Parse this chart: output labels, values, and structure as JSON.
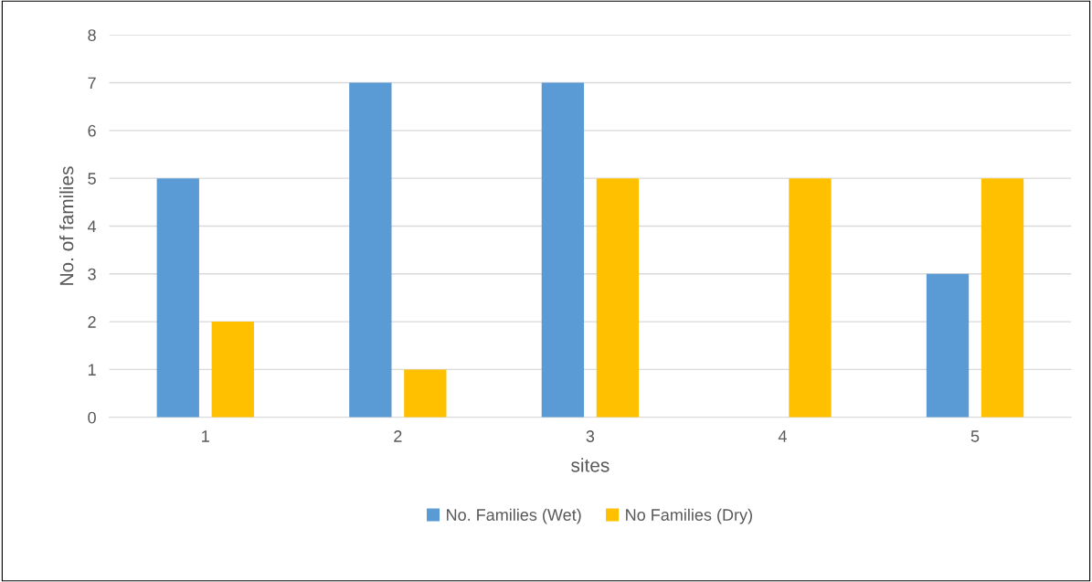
{
  "chart_data": {
    "type": "bar",
    "xlabel": "sites",
    "ylabel": "No. of families",
    "categories": [
      "1",
      "2",
      "3",
      "4",
      "5"
    ],
    "series": [
      {
        "name": "No. Families (Wet)",
        "color": "#5b9bd5",
        "values": [
          5,
          7,
          7,
          0,
          3
        ]
      },
      {
        "name": "No Families (Dry)",
        "color": "#ffc000",
        "values": [
          2,
          1,
          5,
          5,
          5
        ]
      }
    ],
    "ylim": [
      0,
      8
    ],
    "yticks": [
      0,
      1,
      2,
      3,
      4,
      5,
      6,
      7,
      8
    ],
    "grid": "y",
    "legend": "bottom"
  }
}
